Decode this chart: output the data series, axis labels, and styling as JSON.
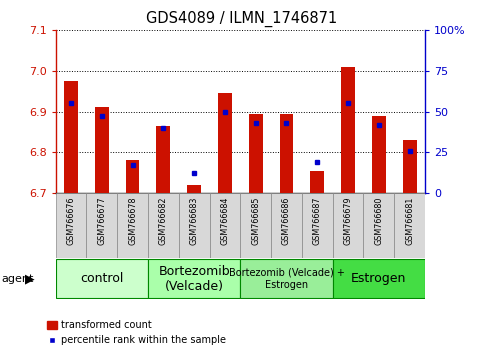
{
  "title": "GDS4089 / ILMN_1746871",
  "samples": [
    "GSM766676",
    "GSM766677",
    "GSM766678",
    "GSM766682",
    "GSM766683",
    "GSM766684",
    "GSM766685",
    "GSM766686",
    "GSM766687",
    "GSM766679",
    "GSM766680",
    "GSM766681"
  ],
  "red_values": [
    6.975,
    6.91,
    6.78,
    6.865,
    6.72,
    6.945,
    6.895,
    6.895,
    6.755,
    7.01,
    6.89,
    6.83
  ],
  "blue_percentiles": [
    55,
    47,
    17,
    40,
    12,
    50,
    43,
    43,
    19,
    55,
    42,
    26
  ],
  "y_min": 6.7,
  "y_max": 7.1,
  "y_ticks": [
    6.7,
    6.8,
    6.9,
    7.0,
    7.1
  ],
  "right_y_ticks": [
    0,
    25,
    50,
    75,
    100
  ],
  "right_y_labels": [
    "0",
    "25",
    "50",
    "75",
    "100%"
  ],
  "groups": [
    {
      "label": "control",
      "start": 0,
      "end": 3,
      "color": "#ccffcc",
      "fontsize": 9
    },
    {
      "label": "Bortezomib\n(Velcade)",
      "start": 3,
      "end": 6,
      "color": "#aaffaa",
      "fontsize": 9
    },
    {
      "label": "Bortezomib (Velcade) +\nEstrogen",
      "start": 6,
      "end": 9,
      "color": "#99ee99",
      "fontsize": 7
    },
    {
      "label": "Estrogen",
      "start": 9,
      "end": 12,
      "color": "#44dd44",
      "fontsize": 9
    }
  ],
  "agent_label": "agent",
  "legend_red": "transformed count",
  "legend_blue": "percentile rank within the sample",
  "bar_color": "#cc1100",
  "blue_color": "#0000cc",
  "bar_width": 0.45,
  "baseline": 6.7,
  "sample_box_color": "#d8d8d8",
  "group_border_color": "#008800"
}
